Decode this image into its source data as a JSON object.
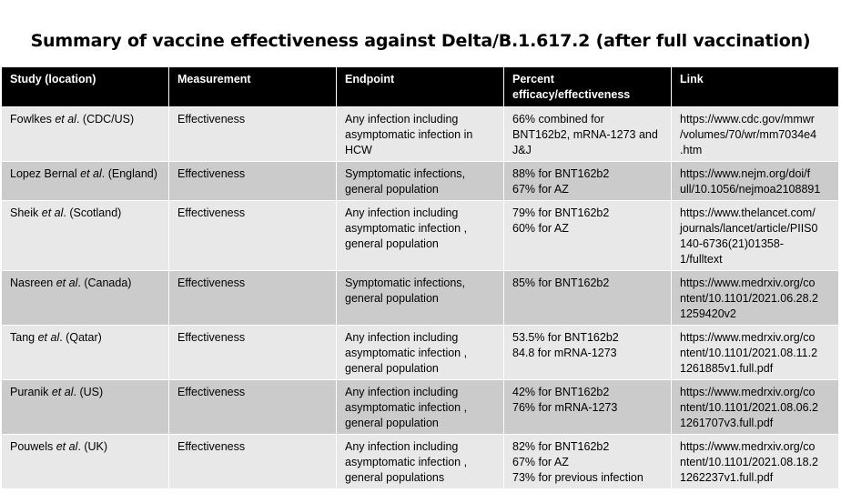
{
  "title": "Summary of vaccine effectiveness against Delta/B.1.617.2  (after full vaccination)",
  "headers": {
    "study": "Study (location)",
    "measurement": "Measurement",
    "endpoint": "Endpoint",
    "percent_line1": "Percent",
    "percent_line2": "efficacy/effectiveness",
    "link": "Link"
  },
  "rows": [
    {
      "author": "Fowlkes ",
      "etal": "et al",
      "location": ". (CDC/US)",
      "measurement": "Effectiveness",
      "endpoint": [
        "Any infection including",
        "asymptomatic infection in",
        "HCW"
      ],
      "percent": [
        "66% combined for",
        "BNT162b2, mRNA-1273 and",
        "J&J"
      ],
      "link": [
        "https://www.cdc.gov/mmwr",
        "/volumes/70/wr/mm7034e4",
        ".htm"
      ]
    },
    {
      "author": "Lopez Bernal ",
      "etal": "et al",
      "location": ". (England)",
      "measurement": "Effectiveness",
      "endpoint": [
        "Symptomatic infections,",
        "general population"
      ],
      "percent": [
        "88% for BNT162b2",
        "67% for AZ"
      ],
      "link": [
        "https://www.nejm.org/doi/f",
        "ull/10.1056/nejmoa2108891"
      ]
    },
    {
      "author": "Sheik ",
      "etal": "et al",
      "location": ". (Scotland)",
      "measurement": "Effectiveness",
      "endpoint": [
        "Any infection including",
        "asymptomatic infection ,",
        "general population"
      ],
      "percent": [
        "79% for BNT162b2",
        "60% for AZ"
      ],
      "link": [
        "https://www.thelancet.com/",
        "journals/lancet/article/PIIS0",
        "140-6736(21)01358-",
        "1/fulltext"
      ]
    },
    {
      "author": "Nasreen ",
      "etal": "et al",
      "location": ". (Canada)",
      "measurement": "Effectiveness",
      "endpoint": [
        "Symptomatic infections,",
        "general population"
      ],
      "percent": [
        "85% for BNT162b2"
      ],
      "link": [
        "https://www.medrxiv.org/co",
        "ntent/10.1101/2021.06.28.2",
        "1259420v2"
      ]
    },
    {
      "author": "Tang ",
      "etal": "et al",
      "location": ". (Qatar)",
      "measurement": "Effectiveness",
      "endpoint": [
        "Any infection including",
        "asymptomatic infection ,",
        "general population"
      ],
      "percent": [
        "53.5% for BNT162b2",
        "84.8 for mRNA-1273"
      ],
      "link": [
        "https://www.medrxiv.org/co",
        "ntent/10.1101/2021.08.11.2",
        "1261885v1.full.pdf"
      ]
    },
    {
      "author": "Puranik ",
      "etal": "et al",
      "location": ". (US)",
      "measurement": "Effectiveness",
      "endpoint": [
        "Any infection including",
        "asymptomatic infection ,",
        "general population"
      ],
      "percent": [
        "42% for BNT162b2",
        "76% for mRNA-1273"
      ],
      "link": [
        "https://www.medrxiv.org/co",
        "ntent/10.1101/2021.08.06.2",
        "1261707v3.full.pdf"
      ]
    },
    {
      "author": "Pouwels ",
      "etal": "et al",
      "location": ". (UK)",
      "measurement": "Effectiveness",
      "endpoint": [
        "Any infection including",
        "asymptomatic infection ,",
        "general populations"
      ],
      "percent": [
        "82% for BNT162b2",
        "67% for AZ",
        "73% for previous infection"
      ],
      "link": [
        "https://www.medrxiv.org/co",
        "ntent/10.1101/2021.08.18.2",
        "1262237v1.full.pdf"
      ]
    }
  ]
}
